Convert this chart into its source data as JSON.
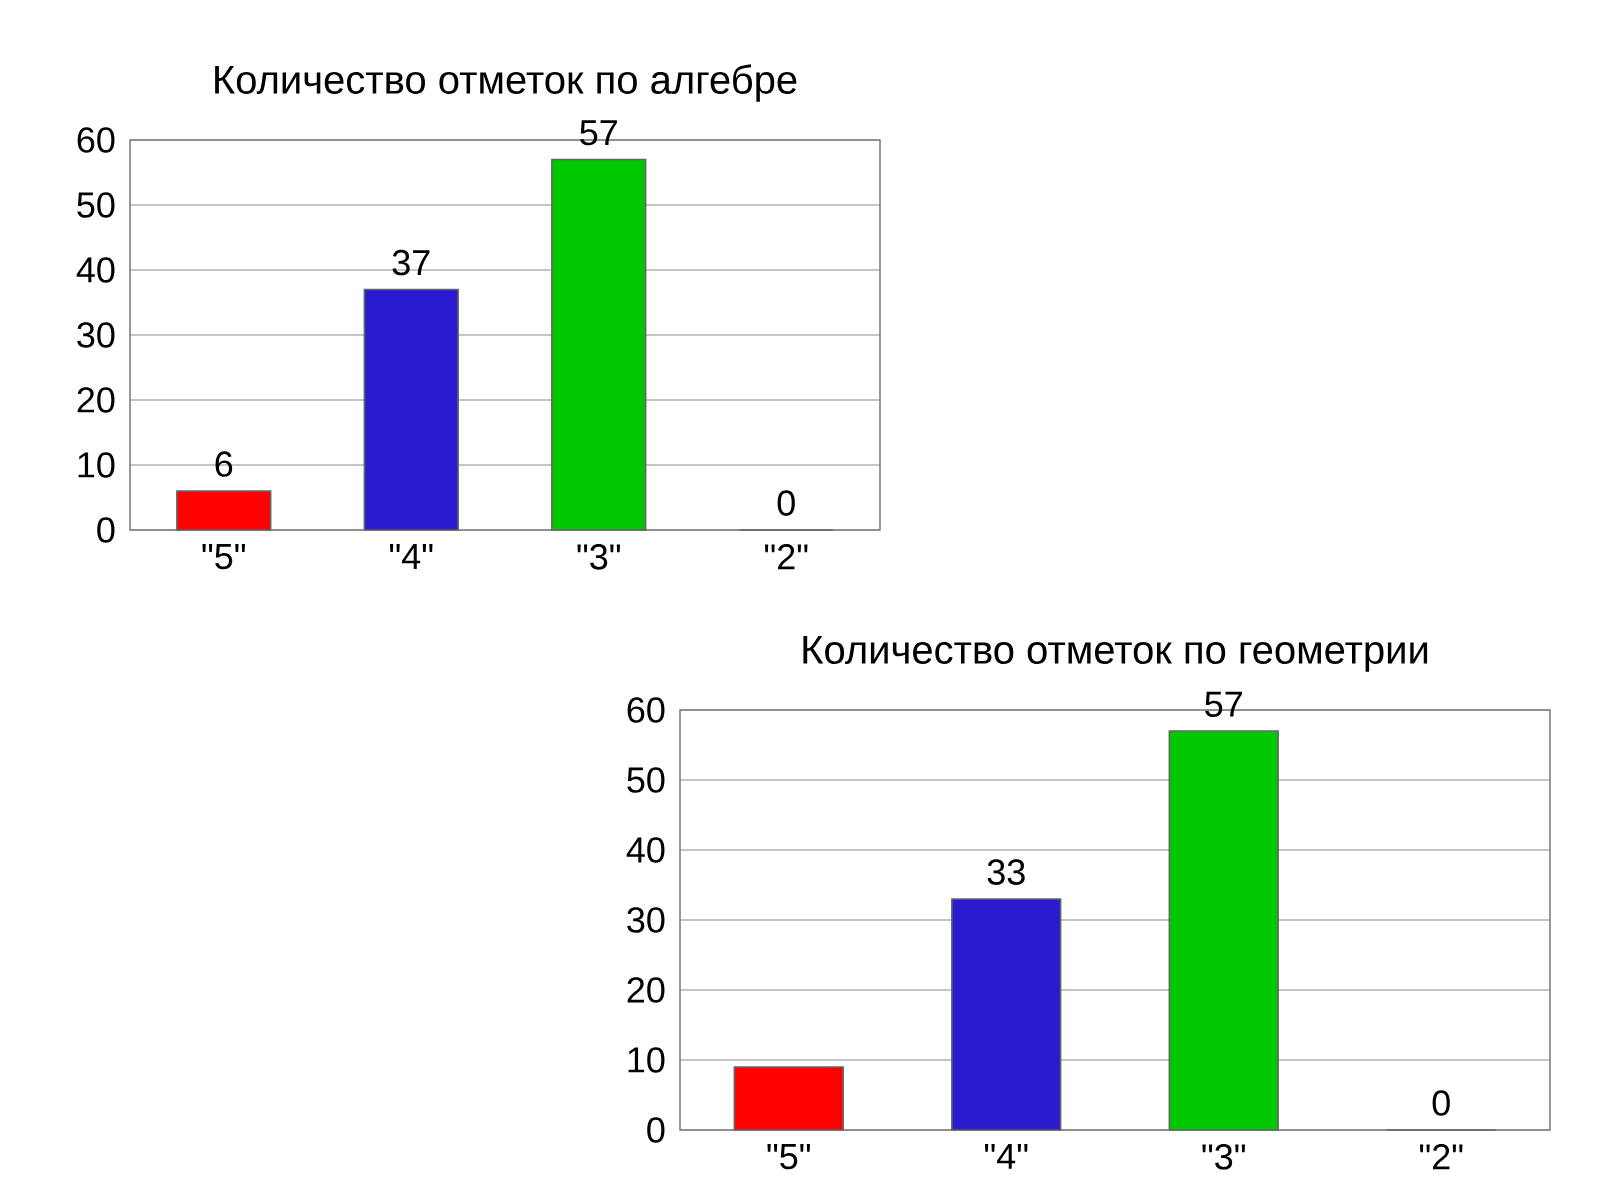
{
  "chart_data": [
    {
      "type": "bar",
      "title": "Количество отметок по алгебре",
      "categories": [
        "\"5\"",
        "\"4\"",
        "\"3\"",
        "\"2\""
      ],
      "values": [
        6,
        37,
        57,
        0
      ],
      "colors": [
        "#ff0000",
        "#2a1ad0",
        "#00c800",
        "#808080"
      ],
      "value_labels": [
        "6",
        "37",
        "57",
        "0"
      ],
      "ylim": [
        0,
        60
      ],
      "yticks": [
        0,
        10,
        20,
        30,
        40,
        50,
        60
      ],
      "grid": "y"
    },
    {
      "type": "bar",
      "title": "Количество отметок по геометрии",
      "categories": [
        "\"5\"",
        "\"4\"",
        "\"3\"",
        "\"2\""
      ],
      "values": [
        9,
        33,
        57,
        0
      ],
      "colors": [
        "#ff0000",
        "#2a1ad0",
        "#00c800",
        "#808080"
      ],
      "value_labels": [
        null,
        "33",
        "57",
        "0"
      ],
      "ylim": [
        0,
        60
      ],
      "yticks": [
        0,
        10,
        20,
        30,
        40,
        50,
        60
      ],
      "grid": "y"
    }
  ]
}
